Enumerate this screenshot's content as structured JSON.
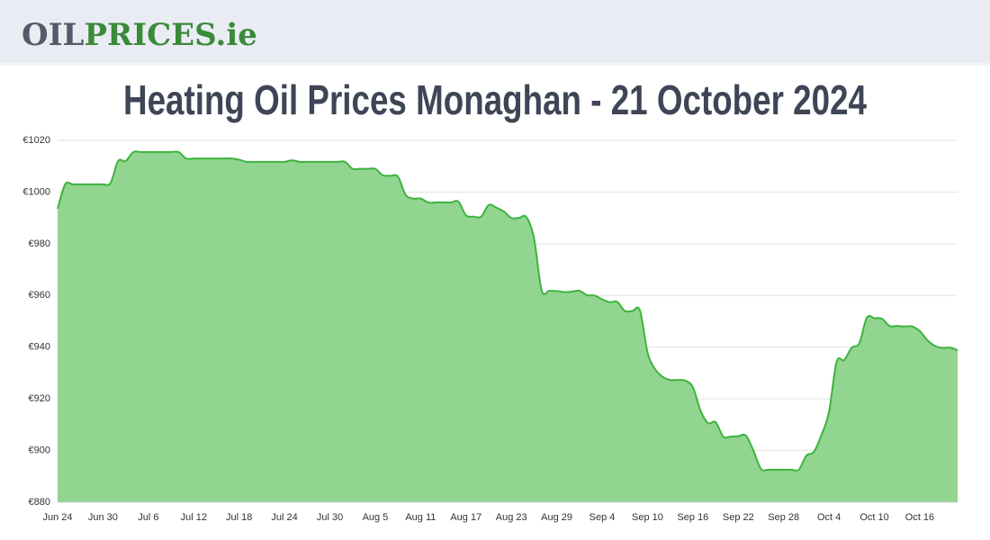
{
  "header": {
    "logo_oil": "OIL",
    "logo_prices": "PRICES.ie"
  },
  "chart_data": {
    "type": "area",
    "title": "Heating Oil Prices Monaghan - 21 October 2024",
    "categories": [
      "Jun 24",
      null,
      null,
      null,
      null,
      null,
      "Jun 30",
      null,
      null,
      null,
      null,
      null,
      "Jul 6",
      null,
      null,
      null,
      null,
      null,
      "Jul 12",
      null,
      null,
      null,
      null,
      null,
      "Jul 18",
      null,
      null,
      null,
      null,
      null,
      "Jul 24",
      null,
      null,
      null,
      null,
      null,
      "Jul 30",
      null,
      null,
      null,
      null,
      null,
      "Aug 5",
      null,
      null,
      null,
      null,
      null,
      "Aug 11",
      null,
      null,
      null,
      null,
      null,
      "Aug 17",
      null,
      null,
      null,
      null,
      null,
      "Aug 23",
      null,
      null,
      null,
      null,
      null,
      "Aug 29",
      null,
      null,
      null,
      null,
      null,
      "Sep 4",
      null,
      null,
      null,
      null,
      null,
      "Sep 10",
      null,
      null,
      null,
      null,
      null,
      "Sep 16",
      null,
      null,
      null,
      null,
      null,
      "Sep 22",
      null,
      null,
      null,
      null,
      null,
      "Sep 28",
      null,
      null,
      null,
      null,
      null,
      "Oct 4",
      null,
      null,
      null,
      null,
      null,
      "Oct 10",
      null,
      null,
      null,
      null,
      null,
      "Oct 16",
      null,
      null,
      null,
      null,
      null
    ],
    "values": [
      993.5,
      1003,
      1003,
      1003,
      1003,
      1003,
      1003,
      1003.5,
      1012,
      1012,
      1015.5,
      1015.5,
      1015.5,
      1015.5,
      1015.5,
      1015.5,
      1015.5,
      1013,
      1013,
      1013,
      1013,
      1013,
      1013,
      1013,
      1012.5,
      1011.7,
      1011.7,
      1011.7,
      1011.7,
      1011.7,
      1011.7,
      1012.3,
      1011.7,
      1011.7,
      1011.7,
      1011.7,
      1011.7,
      1011.7,
      1011.7,
      1009,
      1009,
      1009,
      1009,
      1006.5,
      1006.3,
      1006,
      999,
      997.5,
      997.5,
      996,
      996,
      996,
      996,
      996.3,
      991,
      990.5,
      990.5,
      995,
      994,
      992.5,
      990,
      990,
      990.3,
      982,
      962,
      961.8,
      961.7,
      961.3,
      961.5,
      961.8,
      960.1,
      960,
      958.5,
      957.4,
      957.5,
      954,
      954,
      954.2,
      938,
      931.5,
      928.5,
      927.3,
      927.3,
      927,
      924.5,
      915.5,
      910.6,
      911,
      905.4,
      905.4,
      905.5,
      905.8,
      900,
      892.9,
      892.6,
      892.6,
      892.6,
      892.6,
      892.6,
      898,
      899.5,
      906,
      915,
      934.3,
      935,
      939.8,
      941.5,
      951.4,
      951.2,
      951,
      948.2,
      948.2,
      948,
      948,
      946.2,
      942.7,
      940.5,
      939.7,
      939.8,
      938.8
    ],
    "color": "#3db33d",
    "fill": "#91d591",
    "ylim": [
      880,
      1020
    ],
    "yticks": [
      {
        "value": 880,
        "label": "€880"
      },
      {
        "value": 900,
        "label": "€900"
      },
      {
        "value": 920,
        "label": "€920"
      },
      {
        "value": 940,
        "label": "€940"
      },
      {
        "value": 960,
        "label": "€960"
      },
      {
        "value": 980,
        "label": "€980"
      },
      {
        "value": 1000,
        "label": "€1000"
      },
      {
        "value": 1020,
        "label": "€1020"
      }
    ],
    "grid": true
  }
}
